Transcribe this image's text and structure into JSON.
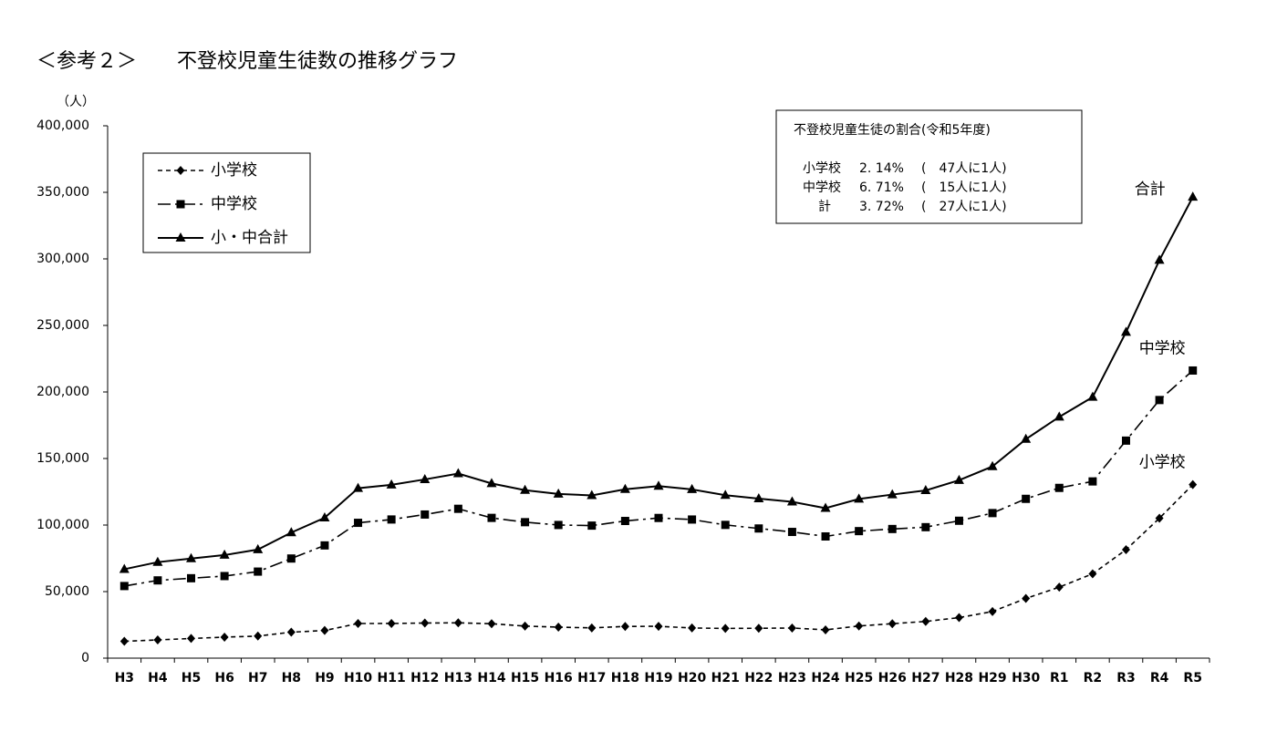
{
  "chart_data": {
    "type": "line",
    "title": "＜参考２＞　　不登校児童生徒数の推移グラフ",
    "y_label": "（人）",
    "categories": [
      "H3",
      "H4",
      "H5",
      "H6",
      "H7",
      "H8",
      "H9",
      "H10",
      "H11",
      "H12",
      "H13",
      "H14",
      "H15",
      "H16",
      "H17",
      "H18",
      "H19",
      "H20",
      "H21",
      "H22",
      "H23",
      "H24",
      "H25",
      "H26",
      "H27",
      "H28",
      "H29",
      "H30",
      "R1",
      "R2",
      "R3",
      "R4",
      "R5"
    ],
    "series": [
      {
        "name": "小学校",
        "color": "#000000",
        "dash": "5,4",
        "marker": "diamond",
        "values": [
          12645,
          13710,
          14769,
          15786,
          16569,
          19498,
          20765,
          26017,
          26047,
          26373,
          26511,
          25869,
          24077,
          23318,
          22709,
          23825,
          23927,
          22652,
          22327,
          22463,
          22622,
          21243,
          24175,
          25864,
          27583,
          30448,
          35032,
          44841,
          53350,
          63350,
          81498,
          105112,
          130370
        ]
      },
      {
        "name": "中学校",
        "color": "#000000",
        "dash": "14,5,3,5",
        "marker": "square",
        "values": [
          54172,
          58421,
          60039,
          61663,
          65022,
          74853,
          84701,
          101675,
          104180,
          107913,
          112211,
          105383,
          102149,
          100040,
          99578,
          103069,
          105328,
          104153,
          100105,
          97428,
          94836,
          91446,
          95442,
          97033,
          98408,
          103235,
          108999,
          119687,
          127922,
          132777,
          163442,
          193936,
          216112
        ]
      },
      {
        "name": "小・中合計",
        "color": "#000000",
        "dash": "none",
        "marker": "triangle",
        "values": [
          66817,
          72131,
          74808,
          77449,
          81591,
          94351,
          105466,
          127692,
          130227,
          134286,
          138722,
          131252,
          126226,
          123358,
          122287,
          126894,
          129255,
          126805,
          122432,
          119891,
          117458,
          112689,
          119617,
          122897,
          125991,
          133683,
          144031,
          164528,
          181272,
          196127,
          244940,
          299048,
          346482
        ]
      }
    ],
    "end_labels": [
      "小学校",
      "中学校",
      "合計"
    ],
    "ylim": [
      0,
      400000
    ],
    "yticks": [
      0,
      {
        "value": 50000,
        "label": "50,000"
      },
      {
        "value": 100000,
        "label": "100,000"
      },
      {
        "value": 150000,
        "label": "150,000"
      },
      {
        "value": 200000,
        "label": "200,000"
      },
      {
        "value": 250000,
        "label": "250,000"
      },
      {
        "value": 300000,
        "label": "300,000"
      },
      {
        "value": 350000,
        "label": "350,000"
      },
      {
        "value": 400000,
        "label": "400,000"
      }
    ],
    "grid": false,
    "legend": "upper left",
    "info_box": {
      "title": "不登校児童生徒の割合(令和5年度)",
      "rows": [
        [
          "小学校",
          "2. 14%",
          "(　47人に1人)"
        ],
        [
          "中学校",
          "6. 71%",
          "(　15人に1人)"
        ],
        [
          "計",
          "3. 72%",
          "(　27人に1人)"
        ]
      ]
    }
  }
}
